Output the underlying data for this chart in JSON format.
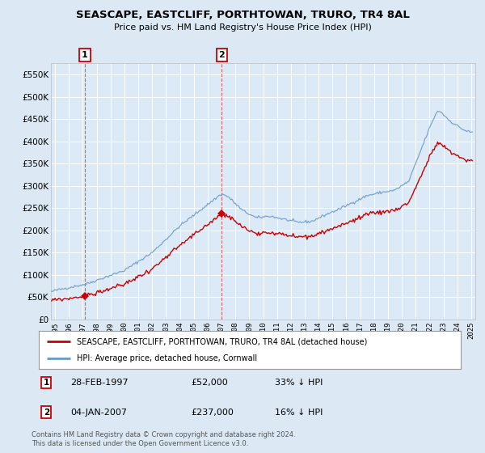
{
  "title": "SEASCAPE, EASTCLIFF, PORTHTOWAN, TRURO, TR4 8AL",
  "subtitle": "Price paid vs. HM Land Registry's House Price Index (HPI)",
  "bg_color": "#dce9f5",
  "plot_bg_color": "#dce9f7",
  "red_line_color": "#cc0000",
  "blue_line_color": "#6699cc",
  "marker_color": "#cc0000",
  "ylim": [
    0,
    575000
  ],
  "yticks": [
    0,
    50000,
    100000,
    150000,
    200000,
    250000,
    300000,
    350000,
    400000,
    450000,
    500000,
    550000
  ],
  "ytick_labels": [
    "£0",
    "£50K",
    "£100K",
    "£150K",
    "£200K",
    "£250K",
    "£300K",
    "£350K",
    "£400K",
    "£450K",
    "£500K",
    "£550K"
  ],
  "xlim_start": 1994.7,
  "xlim_end": 2025.3,
  "xticks": [
    1995,
    1996,
    1997,
    1998,
    1999,
    2000,
    2001,
    2002,
    2003,
    2004,
    2005,
    2006,
    2007,
    2008,
    2009,
    2010,
    2011,
    2012,
    2013,
    2014,
    2015,
    2016,
    2017,
    2018,
    2019,
    2020,
    2021,
    2022,
    2023,
    2024,
    2025
  ],
  "sale1_year": 1997.15,
  "sale1_price": 52000,
  "sale2_year": 2007.01,
  "sale2_price": 237000,
  "legend_label_red": "SEASCAPE, EASTCLIFF, PORTHTOWAN, TRURO, TR4 8AL (detached house)",
  "legend_label_blue": "HPI: Average price, detached house, Cornwall",
  "footer": "Contains HM Land Registry data © Crown copyright and database right 2024.\nThis data is licensed under the Open Government Licence v3.0.",
  "table_rows": [
    {
      "num": "1",
      "date": "28-FEB-1997",
      "price": "£52,000",
      "hpi": "33% ↓ HPI"
    },
    {
      "num": "2",
      "date": "04-JAN-2007",
      "price": "£237,000",
      "hpi": "16% ↓ HPI"
    }
  ]
}
